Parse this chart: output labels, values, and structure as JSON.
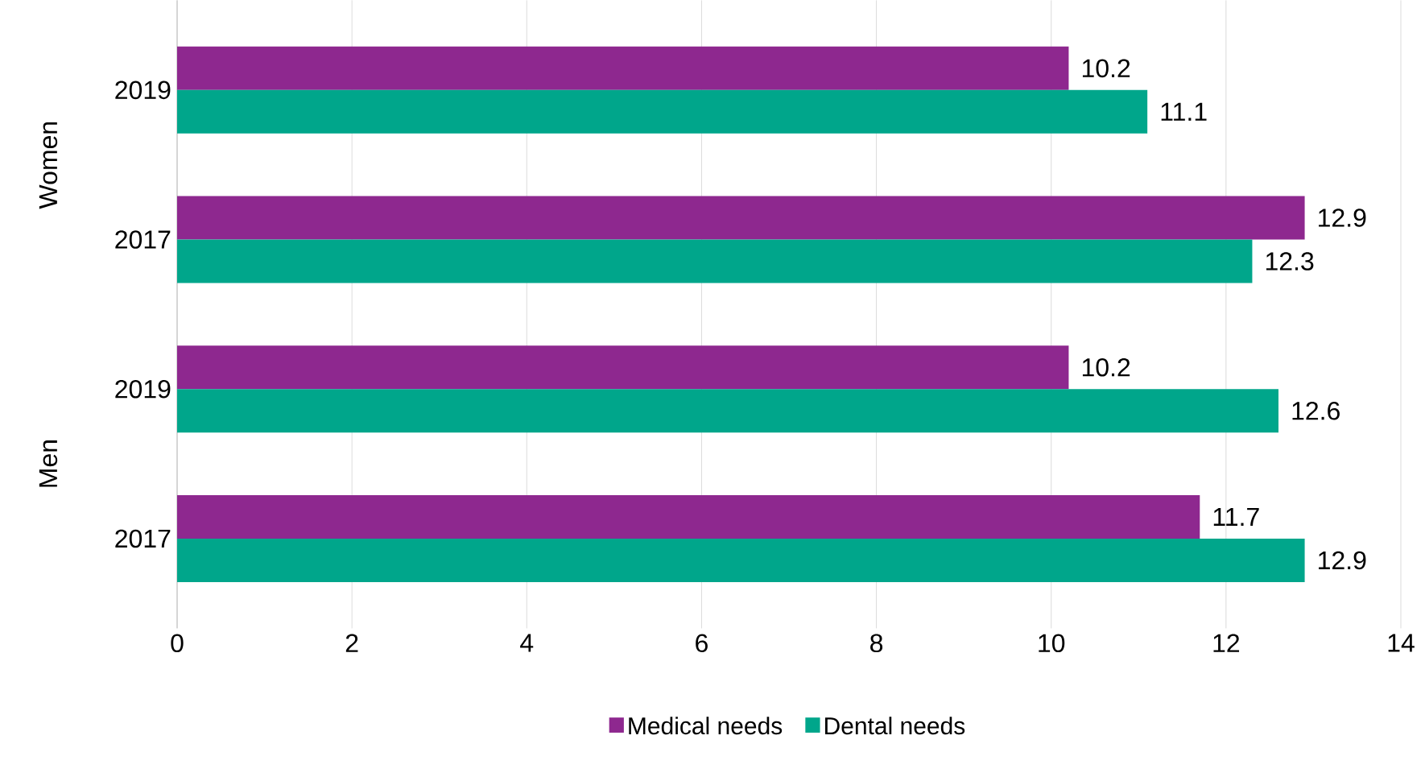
{
  "chart_data": {
    "type": "bar",
    "orientation": "horizontal",
    "categories": [
      "2019",
      "2017",
      "2019",
      "2017"
    ],
    "series": [
      {
        "name": "Medical needs",
        "color": "#8e288f",
        "values": [
          10.2,
          12.9,
          10.2,
          11.7
        ]
      },
      {
        "name": "Dental needs",
        "color": "#00a68b",
        "values": [
          11.1,
          12.3,
          12.6,
          12.9
        ]
      }
    ],
    "annotations": [
      "Women",
      "Men"
    ],
    "xlim": [
      0,
      14
    ],
    "xticks": [
      0,
      2,
      4,
      6,
      8,
      10,
      12,
      14
    ],
    "grid": "x",
    "legend": "bottom",
    "data_labels": true
  }
}
